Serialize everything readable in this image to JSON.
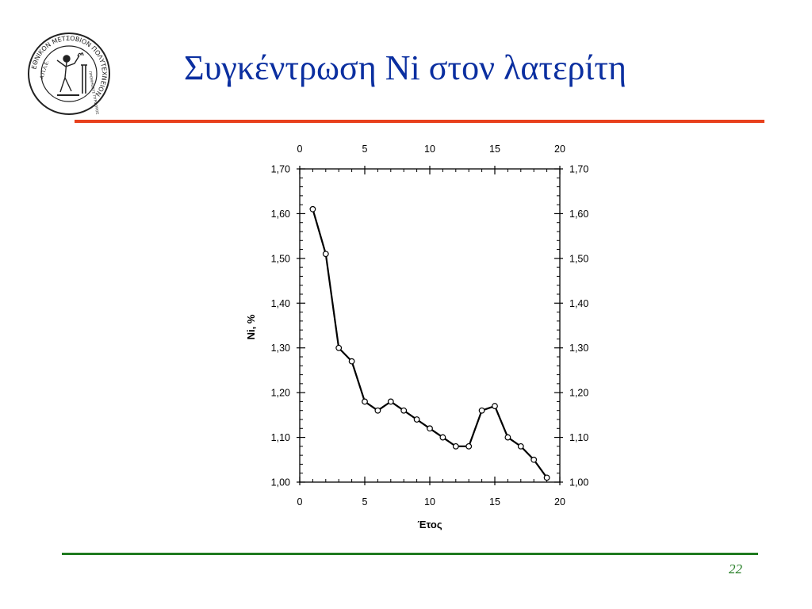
{
  "slide": {
    "title": "Συγκέντρωση Ni στον λατερίτη",
    "page_number": "22",
    "logo_ring_text": "ΕΘΝΙΚΟΝ ΜΕΤΣΟΒΙΟΝ ΠΟΛΥΤΕΧΝΕΙΟΝ",
    "logo_side_text": "Α.Π.Λ.Ε.",
    "logo_motto_text": "ΠΡΟΜΗΘΕΥΣ ΠΥΡΦΟΡΟΣ"
  },
  "colors": {
    "title": "#0b2fa0",
    "top_rule": "#e8401c",
    "bottom_rule": "#1f7a1f",
    "page_number": "#1f7a1f",
    "series": "#000000"
  },
  "chart_data": {
    "type": "line",
    "title": "",
    "xlabel": "Έτος",
    "ylabel": "Ni, %",
    "xlim": [
      0,
      20
    ],
    "ylim": [
      1.0,
      1.7
    ],
    "x_ticks": [
      0,
      5,
      10,
      15,
      20
    ],
    "x_tick_labels": [
      "0",
      "5",
      "10",
      "15",
      "20"
    ],
    "y_ticks": [
      1.0,
      1.1,
      1.2,
      1.3,
      1.4,
      1.5,
      1.6,
      1.7
    ],
    "y_tick_labels": [
      "1,00",
      "1,10",
      "1,20",
      "1,30",
      "1,40",
      "1,50",
      "1,60",
      "1,70"
    ],
    "mirror_axes": true,
    "grid": false,
    "marker": "open-circle",
    "series": [
      {
        "x": [
          1,
          2,
          3,
          4,
          5,
          6,
          7,
          8,
          9,
          10,
          11,
          12,
          13,
          14,
          15,
          16,
          17,
          18,
          19
        ],
        "values": [
          1.61,
          1.51,
          1.3,
          1.27,
          1.18,
          1.16,
          1.18,
          1.16,
          1.14,
          1.12,
          1.1,
          1.08,
          1.08,
          1.16,
          1.17,
          1.1,
          1.08,
          1.05,
          1.01
        ]
      }
    ]
  }
}
